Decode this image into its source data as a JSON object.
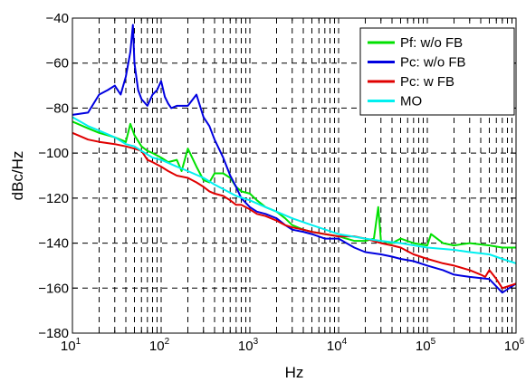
{
  "chart_data": {
    "type": "line",
    "title": "",
    "xlabel": "Hz",
    "ylabel": "dBc/Hz",
    "xscale": "log",
    "xlim": [
      10,
      1000000
    ],
    "ylim": [
      -180,
      -40
    ],
    "x_ticks": [
      {
        "base": "10",
        "exp": "1"
      },
      {
        "base": "10",
        "exp": "2"
      },
      {
        "base": "10",
        "exp": "3"
      },
      {
        "base": "10",
        "exp": "4"
      },
      {
        "base": "10",
        "exp": "5"
      },
      {
        "base": "10",
        "exp": "6"
      }
    ],
    "y_ticks": [
      "−180",
      "−160",
      "−140",
      "−120",
      "−100",
      "−80",
      "−60",
      "−40"
    ],
    "grid": true,
    "legend_position": "top-right",
    "series": [
      {
        "name": "Pf: w/o FB",
        "color": "#00e000",
        "x": [
          10,
          15,
          20,
          30,
          40,
          45,
          50,
          60,
          70,
          80,
          100,
          120,
          150,
          170,
          200,
          250,
          300,
          350,
          400,
          500,
          600,
          700,
          800,
          1000,
          1200,
          1500,
          2000,
          2500,
          3000,
          4000,
          5000,
          7000,
          10000,
          15000,
          20000,
          25000,
          28000,
          30000,
          40000,
          50000,
          70000,
          100000,
          110000,
          150000,
          200000,
          300000,
          500000,
          700000,
          1000000
        ],
        "y": [
          -86,
          -89,
          -91,
          -93,
          -95,
          -87,
          -92,
          -97,
          -99,
          -100,
          -102,
          -104,
          -103,
          -108,
          -98,
          -106,
          -112,
          -113,
          -109,
          -109,
          -111,
          -115,
          -117,
          -118,
          -121,
          -124,
          -126,
          -129,
          -132,
          -134,
          -135,
          -136,
          -137,
          -139,
          -139,
          -138,
          -124,
          -139,
          -140,
          -138,
          -140,
          -141,
          -136,
          -140,
          -141,
          -140,
          -141,
          -142,
          -142
        ]
      },
      {
        "name": "Pc: w/o FB",
        "color": "#0000e0",
        "x": [
          10,
          15,
          20,
          25,
          30,
          35,
          40,
          45,
          48,
          50,
          55,
          60,
          70,
          80,
          90,
          100,
          110,
          120,
          130,
          150,
          170,
          200,
          250,
          300,
          350,
          400,
          500,
          600,
          700,
          800,
          1000,
          1200,
          1500,
          2000,
          2500,
          3000,
          4000,
          5000,
          7000,
          10000,
          15000,
          20000,
          30000,
          40000,
          50000,
          70000,
          100000,
          150000,
          200000,
          300000,
          500000,
          700000,
          1000000
        ],
        "y": [
          -83,
          -82,
          -74,
          -72,
          -70,
          -74,
          -66,
          -55,
          -43,
          -60,
          -72,
          -76,
          -79,
          -74,
          -72,
          -68,
          -75,
          -78,
          -80,
          -79,
          -79,
          -79,
          -74,
          -84,
          -88,
          -94,
          -102,
          -110,
          -115,
          -120,
          -124,
          -126,
          -127,
          -129,
          -132,
          -134,
          -135,
          -136,
          -138,
          -138,
          -142,
          -144,
          -145,
          -146,
          -147,
          -148,
          -150,
          -152,
          -154,
          -155,
          -156,
          -162,
          -158
        ]
      },
      {
        "name": "Pc: w FB",
        "color": "#e00000",
        "x": [
          10,
          15,
          20,
          30,
          40,
          50,
          60,
          70,
          80,
          100,
          120,
          150,
          200,
          250,
          300,
          350,
          400,
          500,
          600,
          700,
          800,
          1000,
          1200,
          1500,
          2000,
          2500,
          3000,
          4000,
          5000,
          7000,
          10000,
          15000,
          20000,
          30000,
          40000,
          50000,
          70000,
          100000,
          150000,
          200000,
          300000,
          400000,
          450000,
          500000,
          600000,
          700000,
          1000000
        ],
        "y": [
          -91,
          -94,
          -95,
          -96,
          -97,
          -98,
          -99,
          -103,
          -104,
          -106,
          -108,
          -110,
          -111,
          -113,
          -115,
          -117,
          -118,
          -119,
          -121,
          -123,
          -123,
          -125,
          -127,
          -128,
          -130,
          -132,
          -133,
          -134,
          -135,
          -136,
          -137,
          -137,
          -138,
          -140,
          -141,
          -142,
          -145,
          -147,
          -149,
          -150,
          -152,
          -154,
          -155,
          -152,
          -156,
          -160,
          -158
        ]
      },
      {
        "name": "MO",
        "color": "#00f0f0",
        "x": [
          10,
          15,
          20,
          30,
          40,
          50,
          60,
          80,
          100,
          150,
          200,
          300,
          400,
          500,
          700,
          1000,
          1500,
          2000,
          3000,
          5000,
          10000,
          20000,
          30000,
          50000,
          100000,
          200000,
          300000,
          500000,
          700000,
          1000000
        ],
        "y": [
          -84,
          -88,
          -90,
          -93,
          -96,
          -97,
          -99,
          -102,
          -103,
          -106,
          -108,
          -111,
          -114,
          -116,
          -119,
          -121,
          -124,
          -126,
          -129,
          -132,
          -136,
          -138,
          -139,
          -140,
          -142,
          -143,
          -144,
          -145,
          -147,
          -149
        ]
      }
    ]
  }
}
